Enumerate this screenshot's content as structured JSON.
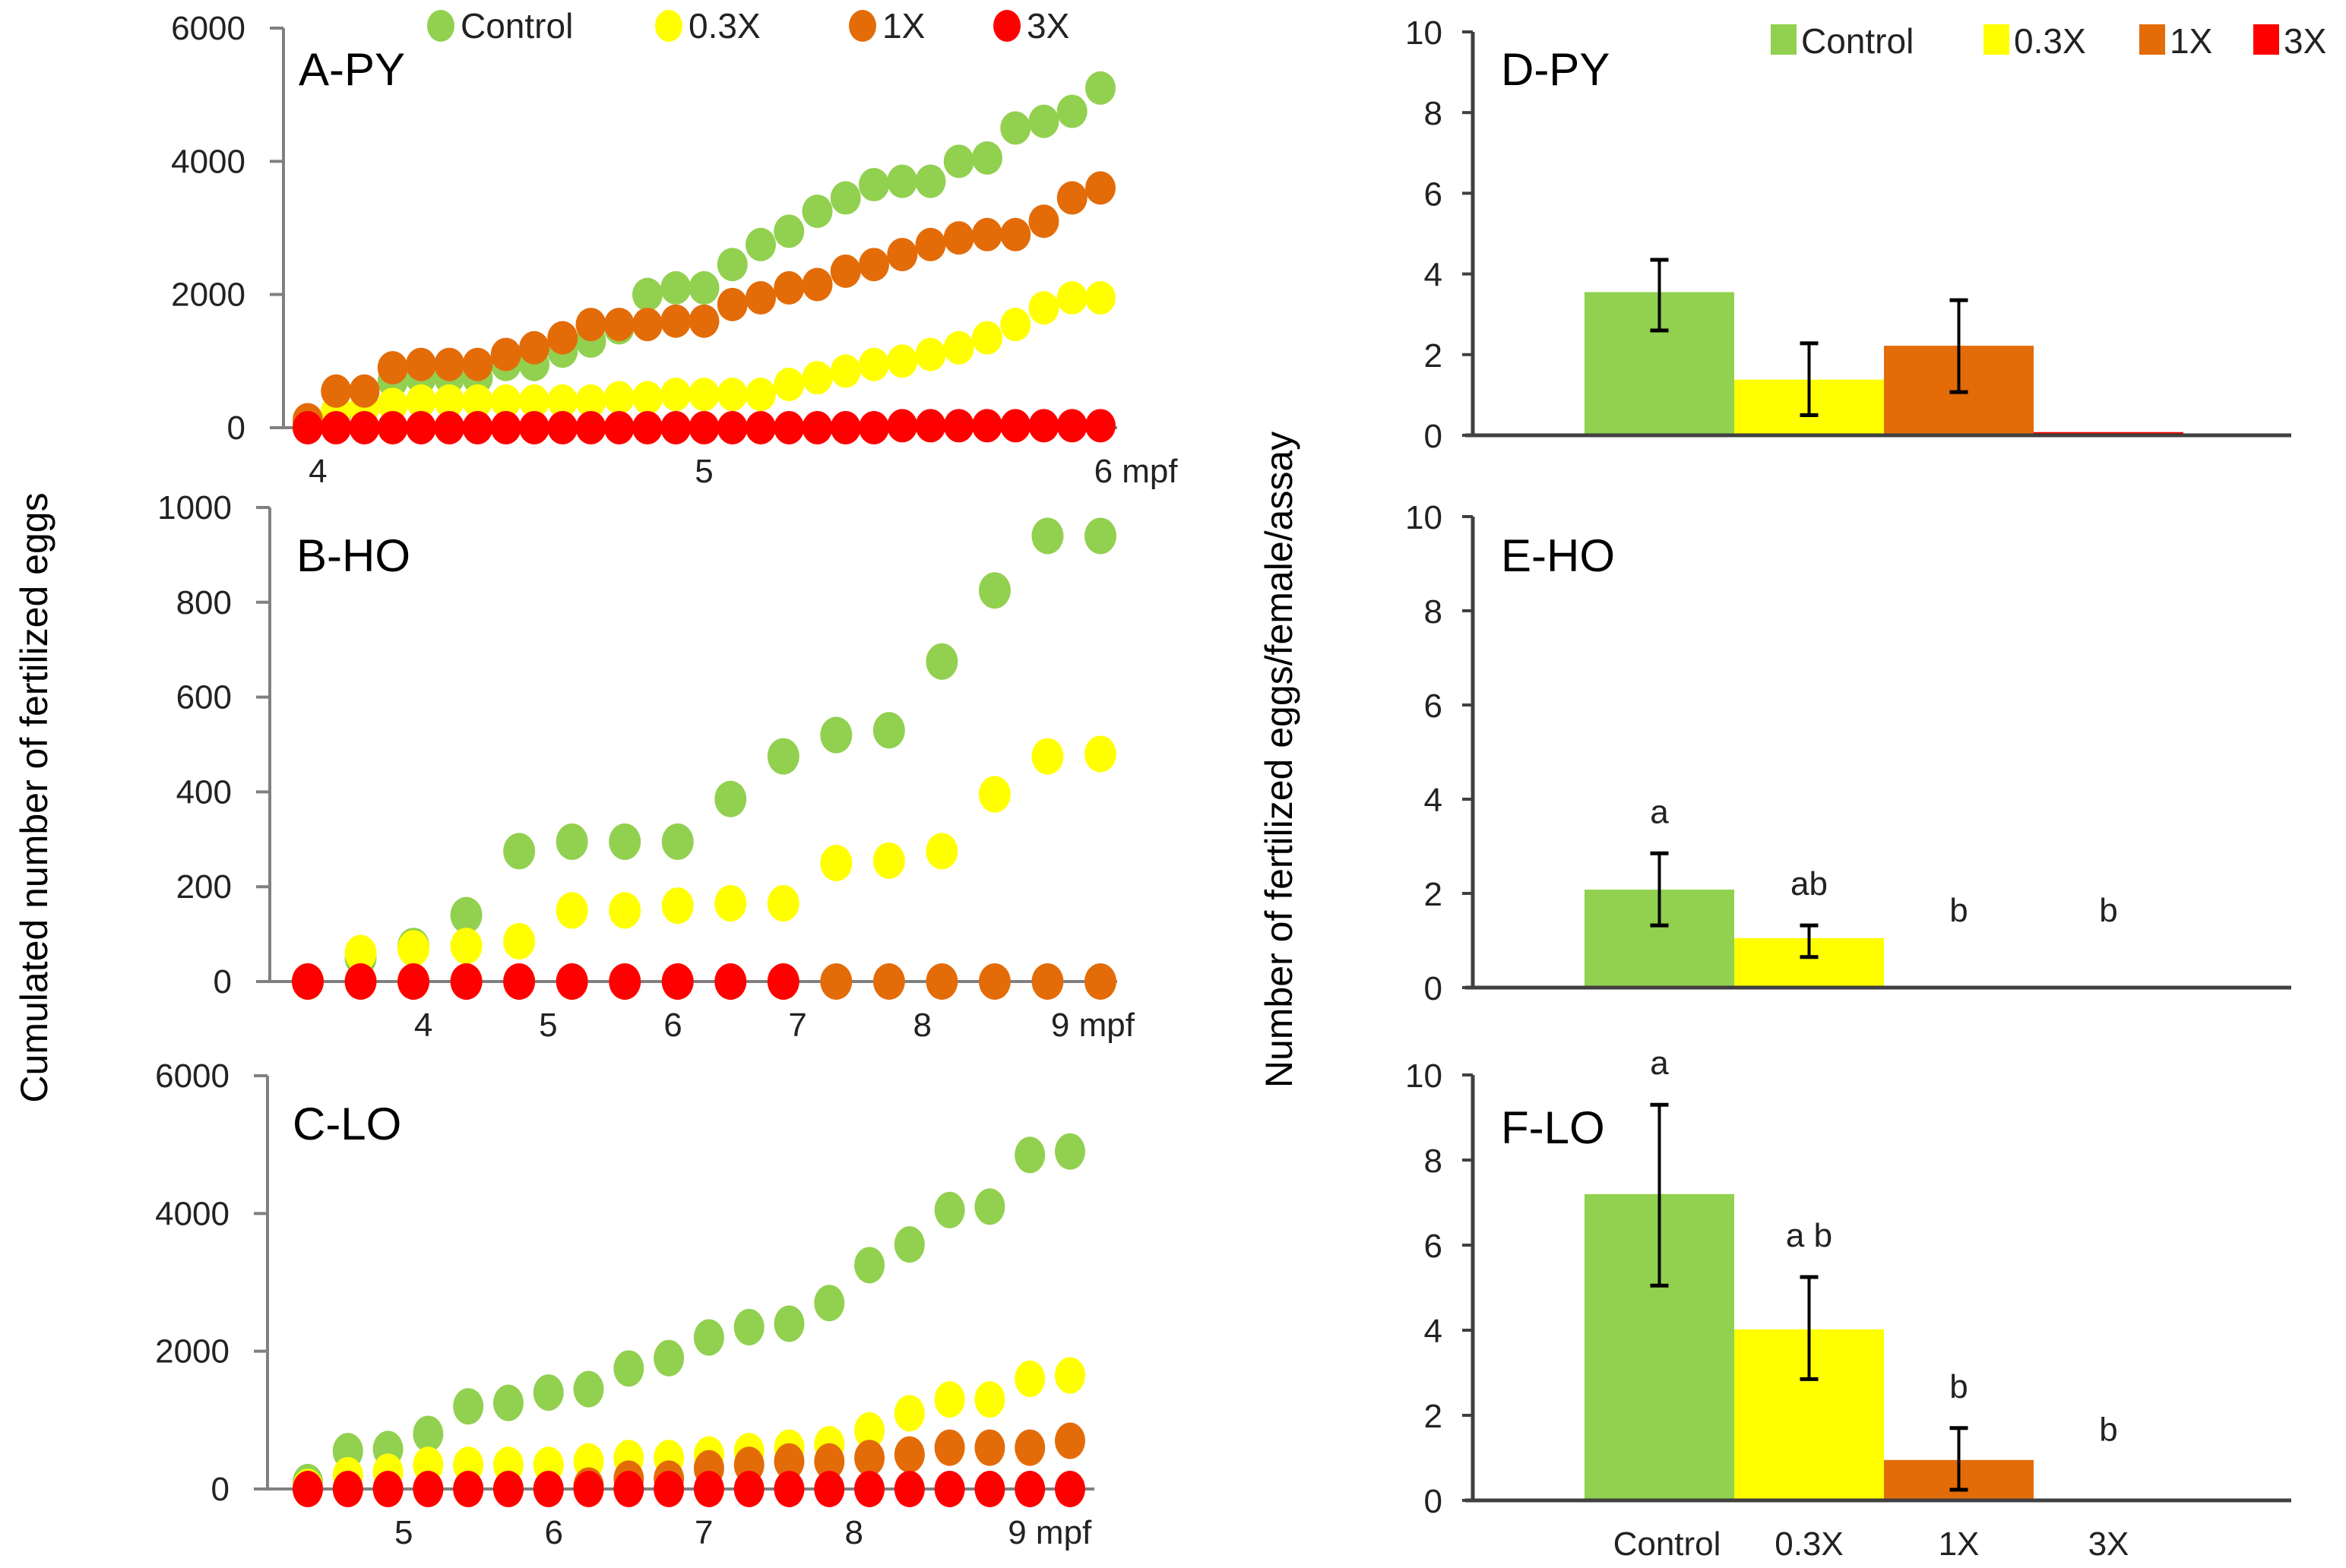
{
  "colors": {
    "Control": "#92D050",
    "0.3X": "#FFFF00",
    "1X": "#E36C09",
    "3X": "#FF0000",
    "axis": "#808080",
    "bar_axis": "#404040",
    "error_bar": "#000000"
  },
  "left_ylabel": "Cumulated number of fertilized eggs",
  "right_ylabel": "Number of fertilized eggs/female/assay",
  "chart_data": [
    {
      "id": "A",
      "type": "scatter",
      "title": "A-PY",
      "xlabel": "",
      "ylabel": "Cumulated number of fertilized eggs",
      "ylim": [
        0,
        6000
      ],
      "yticks": [
        0,
        2000,
        4000,
        6000
      ],
      "xlim": [
        3.95,
        6.05
      ],
      "xticks": [
        {
          "value": 4,
          "label": "4"
        },
        {
          "value": 5,
          "label": "5"
        },
        {
          "value": 6,
          "label": "6 mpf"
        }
      ],
      "legend": [
        "Control",
        "0.3X",
        "1X",
        "3X"
      ],
      "legend_position": "top",
      "x": [
        3.96,
        4.03,
        4.1,
        4.17,
        4.24,
        4.31,
        4.38,
        4.45,
        4.52,
        4.59,
        4.66,
        4.73,
        4.8,
        4.87,
        4.94,
        5.01,
        5.08,
        5.15,
        5.22,
        5.29,
        5.36,
        5.43,
        5.5,
        5.57,
        5.64,
        5.71,
        5.78,
        5.85,
        5.92
      ],
      "series": [
        {
          "name": "Control",
          "values": [
            50,
            200,
            300,
            700,
            750,
            750,
            750,
            950,
            950,
            1150,
            1300,
            1500,
            2000,
            2100,
            2100,
            2450,
            2750,
            2950,
            3250,
            3450,
            3650,
            3700,
            3700,
            4000,
            4050,
            4500,
            4600,
            4750,
            5100
          ]
        },
        {
          "name": "0.3X",
          "values": [
            20,
            250,
            300,
            350,
            400,
            400,
            400,
            400,
            400,
            400,
            400,
            450,
            450,
            500,
            500,
            500,
            500,
            650,
            750,
            850,
            950,
            1000,
            1100,
            1200,
            1350,
            1550,
            1800,
            1950,
            1950
          ]
        },
        {
          "name": "1X",
          "values": [
            120,
            550,
            550,
            900,
            950,
            950,
            950,
            1100,
            1200,
            1350,
            1550,
            1550,
            1550,
            1600,
            1600,
            1850,
            1950,
            2100,
            2150,
            2350,
            2450,
            2600,
            2750,
            2850,
            2900,
            2900,
            3100,
            3450,
            3600
          ]
        },
        {
          "name": "3X",
          "values": [
            0,
            0,
            0,
            0,
            0,
            0,
            0,
            0,
            0,
            0,
            0,
            0,
            0,
            0,
            0,
            0,
            0,
            0,
            0,
            0,
            0,
            30,
            30,
            30,
            30,
            30,
            30,
            30,
            30
          ]
        }
      ]
    },
    {
      "id": "B",
      "type": "scatter",
      "title": "B-HO",
      "xlabel": "",
      "ylabel": "Cumulated number of fertilized eggs",
      "ylim": [
        0,
        1000
      ],
      "yticks": [
        0,
        200,
        400,
        600,
        800,
        1000
      ],
      "xlim": [
        3.0,
        9.5
      ],
      "xticks": [
        {
          "value": 4,
          "label": "4"
        },
        {
          "value": 5,
          "label": "5"
        },
        {
          "value": 6,
          "label": "6"
        },
        {
          "value": 7,
          "label": "7"
        },
        {
          "value": 8,
          "label": "8"
        },
        {
          "value": 9,
          "label": "9 mpf"
        }
      ],
      "x": [
        3.66,
        4.0,
        4.35,
        4.69,
        5.03,
        5.38,
        5.72,
        6.06,
        6.41,
        6.75,
        7.09,
        7.44,
        7.78,
        8.12,
        8.47,
        8.81
      ],
      "series": [
        {
          "name": "Control",
          "values": [
            0,
            50,
            75,
            140,
            275,
            295,
            295,
            295,
            385,
            475,
            520,
            530,
            675,
            825,
            940,
            940
          ]
        },
        {
          "name": "0.3X",
          "values": [
            0,
            60,
            70,
            75,
            85,
            150,
            150,
            160,
            165,
            165,
            250,
            255,
            275,
            395,
            475,
            480
          ]
        },
        {
          "name": "1X",
          "values": [
            0,
            0,
            0,
            0,
            0,
            0,
            0,
            0,
            0,
            0,
            0,
            0,
            0,
            0,
            0,
            0
          ]
        },
        {
          "name": "3X",
          "values": [
            0,
            0,
            0,
            0,
            0,
            0,
            0,
            0,
            0,
            0,
            null,
            null,
            null,
            null,
            null,
            null
          ]
        }
      ]
    },
    {
      "id": "C",
      "type": "scatter",
      "title": "C-LO",
      "xlabel": "",
      "ylabel": "Cumulated number of fertilized eggs",
      "ylim": [
        0,
        6000
      ],
      "yticks": [
        0,
        2000,
        4000,
        6000
      ],
      "xlim": [
        4.3,
        9.5
      ],
      "xticks": [
        {
          "value": 5,
          "label": "5"
        },
        {
          "value": 6,
          "label": "6"
        },
        {
          "value": 7,
          "label": "7"
        },
        {
          "value": 8,
          "label": "8"
        },
        {
          "value": 9,
          "label": "9 mpf"
        }
      ],
      "x": [
        4.55,
        4.8,
        5.05,
        5.3,
        5.55,
        5.8,
        6.05,
        6.3,
        6.55,
        6.8,
        7.05,
        7.3,
        7.55,
        7.8,
        8.05,
        8.3,
        8.55,
        8.8,
        9.05,
        9.3
      ],
      "series": [
        {
          "name": "Control",
          "values": [
            100,
            550,
            580,
            800,
            1200,
            1250,
            1400,
            1450,
            1750,
            1900,
            2200,
            2350,
            2400,
            2700,
            3250,
            3550,
            4050,
            4100,
            4850,
            4900
          ]
        },
        {
          "name": "0.3X",
          "values": [
            30,
            200,
            250,
            350,
            350,
            350,
            350,
            400,
            450,
            450,
            500,
            550,
            600,
            650,
            850,
            1100,
            1300,
            1300,
            1600,
            1650
          ]
        },
        {
          "name": "1X",
          "values": [
            0,
            0,
            0,
            0,
            0,
            0,
            0,
            50,
            150,
            150,
            300,
            350,
            400,
            400,
            450,
            500,
            600,
            600,
            600,
            700
          ]
        },
        {
          "name": "3X",
          "values": [
            0,
            0,
            0,
            0,
            0,
            0,
            0,
            0,
            0,
            0,
            0,
            0,
            0,
            0,
            0,
            0,
            0,
            0,
            0,
            0
          ]
        }
      ]
    },
    {
      "id": "D",
      "type": "bar",
      "title": "D-PY",
      "ylabel": "Number of fertilized eggs/female/assay",
      "ylim": [
        0,
        10
      ],
      "yticks": [
        0,
        2,
        4,
        6,
        8,
        10
      ],
      "categories": [
        "Control",
        "0.3X",
        "1X",
        "3X"
      ],
      "values": [
        3.55,
        1.38,
        2.22,
        0.08
      ],
      "error_low": [
        2.6,
        0.5,
        1.07,
        0.08
      ],
      "error_high": [
        4.35,
        2.28,
        3.35,
        0.08
      ],
      "significance": [
        "",
        "",
        "",
        ""
      ],
      "legend": [
        "Control",
        "0.3X",
        "1X",
        "3X"
      ],
      "legend_position": "top-right",
      "show_category_labels": false
    },
    {
      "id": "E",
      "type": "bar",
      "title": "E-HO",
      "ylabel": "Number of fertilized eggs/female/assay",
      "ylim": [
        0,
        10
      ],
      "yticks": [
        0,
        2,
        4,
        6,
        8,
        10
      ],
      "categories": [
        "Control",
        "0.3X",
        "1X",
        "3X"
      ],
      "values": [
        2.08,
        1.05,
        0,
        0
      ],
      "error_low": [
        1.32,
        0.65,
        null,
        null
      ],
      "error_high": [
        2.85,
        1.32,
        null,
        null
      ],
      "significance": [
        "a",
        "ab",
        "b",
        "b"
      ],
      "show_category_labels": false
    },
    {
      "id": "F",
      "type": "bar",
      "title": "F-LO",
      "ylabel": "Number of fertilized eggs/female/assay",
      "ylim": [
        0,
        10
      ],
      "yticks": [
        0,
        2,
        4,
        6,
        8,
        10
      ],
      "categories": [
        "Control",
        "0.3X",
        "1X",
        "3X"
      ],
      "values": [
        7.2,
        4.02,
        0.95,
        0
      ],
      "error_low": [
        5.05,
        2.85,
        0.25,
        null
      ],
      "error_high": [
        9.3,
        5.25,
        1.7,
        null
      ],
      "significance": [
        "a",
        "a b",
        "b",
        "b"
      ],
      "show_category_labels": true
    }
  ]
}
